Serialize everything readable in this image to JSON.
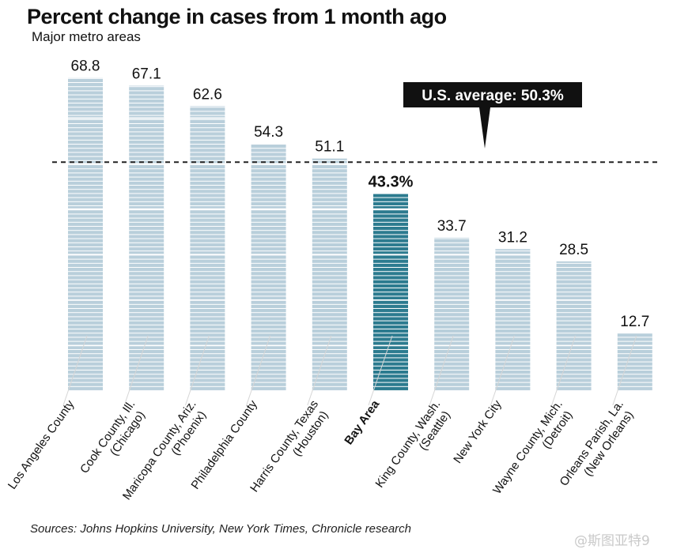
{
  "header": {
    "title": "Percent change in cases from 1 month ago",
    "subtitle": "Major metro areas"
  },
  "chart_data": {
    "type": "bar",
    "categories": [
      "Los Angeles County",
      "Cook County, Ill.|(Chicago)",
      "Maricopa County, Ariz.|(Phoenix)",
      "Philadelphia County",
      "Harris County, Texas|(Houston)",
      "Bay Area",
      "King County, Wash.|(Seattle)",
      "New York City",
      "Wayne County, Mich.|(Detroit)",
      "Orleans Parish, La.|(New Orleans)"
    ],
    "values": [
      68.8,
      67.1,
      62.6,
      54.3,
      51.1,
      43.3,
      33.7,
      31.2,
      28.5,
      12.7
    ],
    "value_labels": [
      "68.8",
      "67.1",
      "62.6",
      "54.3",
      "51.1",
      "43.3%",
      "33.7",
      "31.2",
      "28.5",
      "12.7"
    ],
    "highlight_index": 5,
    "ylim": [
      0,
      70
    ],
    "reference_line": {
      "value": 50.3,
      "label": "U.S. average: 50.3%"
    },
    "colors": {
      "bar": "#b9cfdb",
      "highlight": "#2c7b8f",
      "text": "#111111"
    }
  },
  "footer": {
    "source": "Sources: Johns Hopkins University, New York Times, Chronicle research",
    "watermark": "@斯图亚特9"
  }
}
